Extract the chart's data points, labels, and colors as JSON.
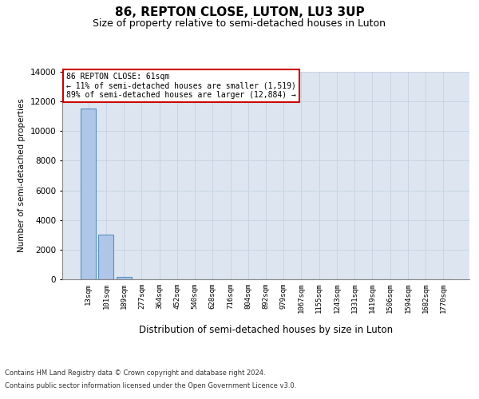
{
  "title": "86, REPTON CLOSE, LUTON, LU3 3UP",
  "subtitle": "Size of property relative to semi-detached houses in Luton",
  "xlabel": "Distribution of semi-detached houses by size in Luton",
  "ylabel": "Number of semi-detached properties",
  "annotation_line1": "86 REPTON CLOSE: 61sqm",
  "annotation_line2": "← 11% of semi-detached houses are smaller (1,519)",
  "annotation_line3": "89% of semi-detached houses are larger (12,884) →",
  "footer_line1": "Contains HM Land Registry data © Crown copyright and database right 2024.",
  "footer_line2": "Contains public sector information licensed under the Open Government Licence v3.0.",
  "bar_labels": [
    "13sqm",
    "101sqm",
    "189sqm",
    "277sqm",
    "364sqm",
    "452sqm",
    "540sqm",
    "628sqm",
    "716sqm",
    "804sqm",
    "892sqm",
    "979sqm",
    "1067sqm",
    "1155sqm",
    "1243sqm",
    "1331sqm",
    "1419sqm",
    "1506sqm",
    "1594sqm",
    "1682sqm",
    "1770sqm"
  ],
  "bar_values": [
    11500,
    3000,
    150,
    0,
    0,
    0,
    0,
    0,
    0,
    0,
    0,
    0,
    0,
    0,
    0,
    0,
    0,
    0,
    0,
    0,
    0
  ],
  "bar_color": "#aec6e8",
  "bar_edge_color": "#5a8fc0",
  "annotation_box_facecolor": "#ffffff",
  "annotation_box_edgecolor": "#cc0000",
  "grid_color": "#c8d4e4",
  "background_color": "#dde6f0",
  "ylim": [
    0,
    14000
  ],
  "yticks": [
    0,
    2000,
    4000,
    6000,
    8000,
    10000,
    12000,
    14000
  ],
  "title_fontsize": 11,
  "subtitle_fontsize": 9
}
